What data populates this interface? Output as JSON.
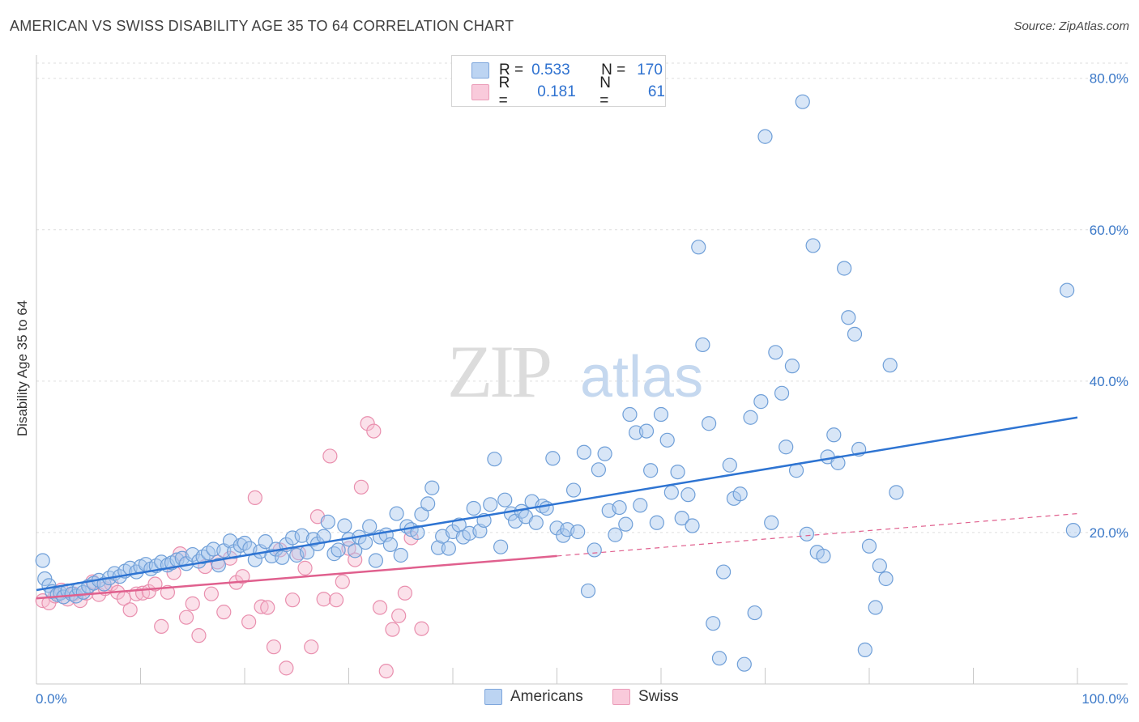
{
  "title": "AMERICAN VS SWISS DISABILITY AGE 35 TO 64 CORRELATION CHART",
  "source": "Source: ZipAtlas.com",
  "watermark": {
    "zip": "ZIP",
    "atlas": "atlas"
  },
  "legend": {
    "americans": {
      "r_label": "R =",
      "r_value": "0.533",
      "n_label": "N =",
      "n_value": "170"
    },
    "swiss": {
      "r_label": "R =",
      "r_value": "0.181",
      "n_label": "N =",
      "n_value": "61"
    }
  },
  "bottom_legend": {
    "americans": "Americans",
    "swiss": "Swiss"
  },
  "colors": {
    "americans_fill": "#a9c8ee",
    "americans_stroke": "#6f9fd8",
    "americans_line": "#2e74d2",
    "swiss_fill": "#f6bdd0",
    "swiss_stroke": "#e98fae",
    "swiss_line": "#e0608e",
    "axis_label": "#3a78c8"
  },
  "chart_data": {
    "type": "scatter",
    "title": "AMERICAN VS SWISS DISABILITY AGE 35 TO 64 CORRELATION CHART",
    "xlabel": "",
    "ylabel": "Disability Age 35 to 64",
    "xlim": [
      0,
      100
    ],
    "ylim": [
      0,
      82
    ],
    "x_tick_labels": [
      "0.0%",
      "100.0%"
    ],
    "y_ticks": [
      20,
      40,
      60,
      80
    ],
    "y_tick_labels": [
      "20.0%",
      "40.0%",
      "60.0%",
      "80.0%"
    ],
    "grid": true,
    "legend_position": "top-center",
    "series": [
      {
        "name": "Americans",
        "trend": {
          "x": [
            0,
            100
          ],
          "y": [
            12.4,
            35.2
          ]
        },
        "points": [
          [
            0.6,
            16.3
          ],
          [
            0.8,
            13.9
          ],
          [
            1.2,
            13.0
          ],
          [
            1.5,
            12.2
          ],
          [
            2.0,
            11.8
          ],
          [
            2.3,
            12.0
          ],
          [
            2.6,
            11.5
          ],
          [
            3.0,
            12.3
          ],
          [
            3.4,
            11.9
          ],
          [
            3.8,
            11.6
          ],
          [
            4.1,
            12.5
          ],
          [
            4.5,
            12.1
          ],
          [
            5.0,
            12.9
          ],
          [
            5.5,
            13.3
          ],
          [
            6.0,
            13.7
          ],
          [
            6.5,
            13.2
          ],
          [
            7.0,
            14.0
          ],
          [
            7.5,
            14.6
          ],
          [
            8.0,
            14.2
          ],
          [
            8.5,
            14.9
          ],
          [
            9.0,
            15.3
          ],
          [
            9.6,
            14.8
          ],
          [
            10.0,
            15.5
          ],
          [
            10.5,
            15.8
          ],
          [
            11.0,
            15.2
          ],
          [
            11.5,
            15.6
          ],
          [
            12.0,
            16.1
          ],
          [
            12.6,
            15.7
          ],
          [
            13.0,
            16.0
          ],
          [
            13.5,
            16.4
          ],
          [
            14.0,
            16.6
          ],
          [
            14.4,
            15.9
          ],
          [
            15.0,
            17.1
          ],
          [
            15.6,
            16.2
          ],
          [
            16.0,
            16.8
          ],
          [
            16.5,
            17.3
          ],
          [
            17.0,
            17.8
          ],
          [
            17.5,
            15.7
          ],
          [
            18.0,
            17.6
          ],
          [
            18.6,
            18.9
          ],
          [
            19.0,
            17.5
          ],
          [
            19.6,
            18.3
          ],
          [
            20.0,
            18.6
          ],
          [
            20.5,
            17.9
          ],
          [
            21.0,
            16.4
          ],
          [
            21.5,
            17.5
          ],
          [
            22.0,
            18.8
          ],
          [
            22.6,
            16.9
          ],
          [
            23.0,
            17.8
          ],
          [
            23.6,
            16.7
          ],
          [
            24.0,
            18.4
          ],
          [
            24.6,
            19.3
          ],
          [
            25.0,
            17.0
          ],
          [
            25.5,
            19.6
          ],
          [
            26.0,
            17.4
          ],
          [
            26.6,
            19.1
          ],
          [
            27.0,
            18.5
          ],
          [
            27.6,
            19.5
          ],
          [
            28.0,
            21.4
          ],
          [
            28.6,
            17.2
          ],
          [
            29.0,
            17.7
          ],
          [
            29.6,
            20.9
          ],
          [
            30.0,
            19.1
          ],
          [
            30.6,
            17.6
          ],
          [
            31.0,
            19.4
          ],
          [
            31.6,
            18.7
          ],
          [
            32.0,
            20.8
          ],
          [
            32.6,
            16.3
          ],
          [
            33.0,
            19.4
          ],
          [
            33.6,
            19.7
          ],
          [
            34.0,
            18.4
          ],
          [
            34.6,
            22.5
          ],
          [
            35.0,
            17.0
          ],
          [
            35.6,
            20.8
          ],
          [
            36.0,
            20.4
          ],
          [
            36.6,
            20.0
          ],
          [
            37.0,
            22.4
          ],
          [
            37.6,
            23.8
          ],
          [
            38.0,
            25.9
          ],
          [
            38.6,
            18.0
          ],
          [
            39.0,
            19.5
          ],
          [
            39.6,
            17.9
          ],
          [
            40.0,
            20.1
          ],
          [
            40.6,
            21.0
          ],
          [
            41.0,
            19.4
          ],
          [
            41.6,
            19.9
          ],
          [
            42.0,
            23.2
          ],
          [
            42.6,
            20.2
          ],
          [
            43.0,
            21.6
          ],
          [
            43.6,
            23.7
          ],
          [
            44.0,
            29.7
          ],
          [
            44.6,
            18.1
          ],
          [
            45.0,
            24.3
          ],
          [
            45.6,
            22.5
          ],
          [
            46.0,
            21.5
          ],
          [
            46.6,
            22.8
          ],
          [
            47.0,
            22.1
          ],
          [
            47.6,
            24.1
          ],
          [
            48.0,
            21.3
          ],
          [
            48.6,
            23.5
          ],
          [
            49.0,
            23.2
          ],
          [
            49.6,
            29.8
          ],
          [
            50.0,
            20.6
          ],
          [
            50.6,
            19.6
          ],
          [
            51.0,
            20.4
          ],
          [
            51.6,
            25.6
          ],
          [
            52.0,
            20.1
          ],
          [
            52.6,
            30.6
          ],
          [
            53.0,
            12.3
          ],
          [
            53.6,
            17.7
          ],
          [
            54.0,
            28.3
          ],
          [
            54.6,
            30.4
          ],
          [
            55.0,
            22.9
          ],
          [
            55.6,
            19.7
          ],
          [
            56.0,
            23.3
          ],
          [
            56.6,
            21.1
          ],
          [
            57.0,
            35.6
          ],
          [
            57.6,
            33.2
          ],
          [
            58.0,
            23.6
          ],
          [
            58.6,
            33.4
          ],
          [
            59.0,
            28.2
          ],
          [
            59.6,
            21.3
          ],
          [
            60.0,
            35.6
          ],
          [
            60.6,
            32.2
          ],
          [
            61.0,
            25.3
          ],
          [
            61.6,
            28.0
          ],
          [
            62.0,
            21.9
          ],
          [
            62.6,
            25.0
          ],
          [
            63.0,
            20.9
          ],
          [
            63.6,
            57.7
          ],
          [
            64.0,
            44.8
          ],
          [
            64.6,
            34.4
          ],
          [
            65.0,
            8.0
          ],
          [
            65.6,
            3.4
          ],
          [
            66.0,
            14.8
          ],
          [
            66.6,
            28.9
          ],
          [
            67.0,
            24.5
          ],
          [
            67.6,
            25.1
          ],
          [
            68.0,
            2.6
          ],
          [
            68.6,
            35.2
          ],
          [
            69.0,
            9.4
          ],
          [
            69.6,
            37.3
          ],
          [
            70.0,
            72.3
          ],
          [
            70.6,
            21.3
          ],
          [
            71.0,
            43.8
          ],
          [
            71.6,
            38.4
          ],
          [
            72.0,
            31.3
          ],
          [
            72.6,
            42.0
          ],
          [
            73.0,
            28.2
          ],
          [
            73.6,
            76.9
          ],
          [
            74.0,
            19.8
          ],
          [
            74.6,
            57.9
          ],
          [
            75.0,
            17.4
          ],
          [
            75.6,
            16.9
          ],
          [
            76.0,
            30.0
          ],
          [
            76.6,
            32.9
          ],
          [
            77.0,
            29.2
          ],
          [
            77.6,
            54.9
          ],
          [
            78.0,
            48.4
          ],
          [
            78.6,
            46.2
          ],
          [
            79.0,
            31.0
          ],
          [
            79.6,
            4.5
          ],
          [
            80.0,
            18.2
          ],
          [
            80.6,
            10.1
          ],
          [
            81.0,
            15.6
          ],
          [
            81.6,
            13.9
          ],
          [
            82.0,
            42.1
          ],
          [
            82.6,
            25.3
          ],
          [
            99.0,
            52.0
          ],
          [
            99.6,
            20.3
          ]
        ]
      },
      {
        "name": "Swiss",
        "trend": {
          "x": [
            0,
            50
          ],
          "y": [
            11.3,
            16.9
          ]
        },
        "trend_extended": {
          "x": [
            50,
            100
          ],
          "y": [
            16.9,
            22.5
          ]
        },
        "points": [
          [
            0.6,
            11.0
          ],
          [
            1.2,
            10.7
          ],
          [
            1.8,
            11.6
          ],
          [
            2.4,
            12.4
          ],
          [
            3.0,
            11.2
          ],
          [
            3.6,
            11.9
          ],
          [
            4.2,
            11.0
          ],
          [
            4.8,
            12.0
          ],
          [
            5.4,
            13.5
          ],
          [
            6.0,
            11.8
          ],
          [
            6.6,
            12.6
          ],
          [
            7.2,
            13.2
          ],
          [
            7.8,
            12.1
          ],
          [
            8.4,
            11.3
          ],
          [
            9.0,
            9.8
          ],
          [
            9.6,
            11.9
          ],
          [
            10.2,
            12.0
          ],
          [
            10.8,
            12.2
          ],
          [
            11.4,
            13.2
          ],
          [
            12.0,
            7.6
          ],
          [
            12.6,
            12.1
          ],
          [
            13.2,
            14.7
          ],
          [
            13.8,
            17.2
          ],
          [
            14.4,
            8.8
          ],
          [
            15.0,
            10.6
          ],
          [
            15.6,
            6.4
          ],
          [
            16.2,
            15.5
          ],
          [
            16.8,
            11.9
          ],
          [
            17.4,
            16.1
          ],
          [
            18.0,
            9.5
          ],
          [
            18.6,
            16.6
          ],
          [
            19.2,
            13.4
          ],
          [
            19.8,
            14.2
          ],
          [
            20.4,
            8.2
          ],
          [
            21.0,
            24.6
          ],
          [
            21.6,
            10.2
          ],
          [
            22.2,
            10.1
          ],
          [
            22.8,
            4.9
          ],
          [
            23.4,
            17.7
          ],
          [
            24.0,
            2.1
          ],
          [
            24.6,
            11.1
          ],
          [
            25.2,
            17.3
          ],
          [
            25.8,
            15.3
          ],
          [
            26.4,
            4.9
          ],
          [
            27.0,
            22.1
          ],
          [
            27.6,
            11.2
          ],
          [
            28.2,
            30.1
          ],
          [
            28.8,
            11.1
          ],
          [
            29.4,
            13.5
          ],
          [
            30.0,
            17.9
          ],
          [
            30.6,
            16.4
          ],
          [
            31.2,
            26.0
          ],
          [
            31.8,
            34.4
          ],
          [
            32.4,
            33.4
          ],
          [
            33.0,
            10.1
          ],
          [
            33.6,
            1.7
          ],
          [
            34.2,
            7.2
          ],
          [
            34.8,
            9.0
          ],
          [
            35.4,
            12.0
          ],
          [
            36.0,
            19.3
          ],
          [
            37.0,
            7.3
          ]
        ]
      }
    ]
  }
}
